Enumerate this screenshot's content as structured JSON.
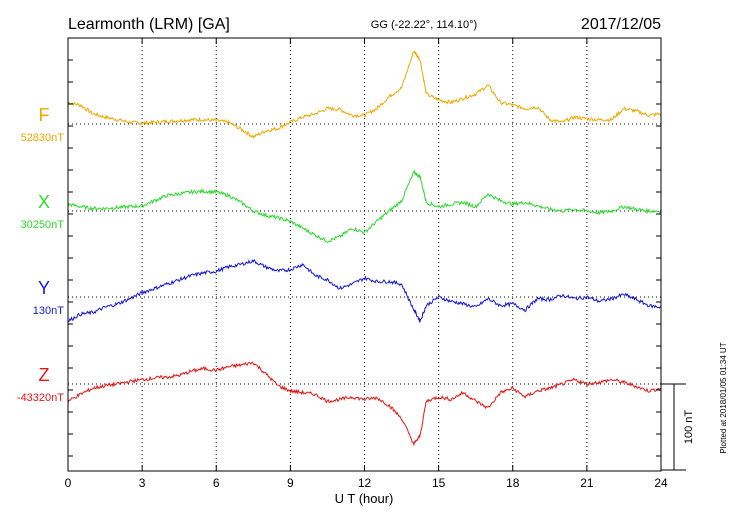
{
  "header": {
    "station": "Learmonth (LRM)  [GA]",
    "coords": "GG (-22.22°, 114.10°)",
    "date": "2017/12/05"
  },
  "side_note": "Plotted at 2018/01/05 01:34 UT",
  "scale_label": "100 nT",
  "chart_data": {
    "type": "line",
    "xlabel": "U T (hour)",
    "xlim": [
      0,
      24
    ],
    "x_ticks": [
      "0",
      "3",
      "6",
      "9",
      "12",
      "15",
      "18",
      "21",
      "24"
    ],
    "units_per_100nT": 100,
    "series": [
      {
        "name": "F",
        "baseline_label": "52830nT",
        "color": "#f0a800",
        "x": [
          0,
          0.5,
          1,
          1.5,
          2,
          2.5,
          3,
          3.5,
          4,
          4.5,
          5,
          5.5,
          6,
          6.5,
          7,
          7.5,
          8,
          8.5,
          9,
          9.5,
          10,
          10.5,
          11,
          11.5,
          12,
          12.5,
          13,
          13.5,
          14,
          14.25,
          14.5,
          15,
          15.5,
          16,
          16.5,
          17,
          17.5,
          18,
          18.5,
          19,
          19.5,
          20,
          20.5,
          21,
          21.5,
          22,
          22.5,
          23,
          23.5,
          24
        ],
        "y": [
          25,
          22,
          12,
          8,
          5,
          2,
          1,
          2,
          3,
          4,
          5,
          5,
          4,
          2,
          -6,
          -15,
          -8,
          -5,
          2,
          8,
          12,
          18,
          17,
          10,
          10,
          18,
          32,
          42,
          85,
          75,
          35,
          28,
          25,
          30,
          35,
          45,
          25,
          22,
          18,
          20,
          5,
          2,
          8,
          6,
          5,
          5,
          18,
          15,
          10,
          12
        ]
      },
      {
        "name": "X",
        "baseline_label": "30250nT",
        "color": "#2ed82e",
        "x": [
          0,
          0.5,
          1,
          1.5,
          2,
          2.5,
          3,
          3.5,
          4,
          4.5,
          5,
          5.5,
          6,
          6.5,
          7,
          7.5,
          8,
          8.5,
          9,
          9.5,
          10,
          10.5,
          11,
          11.5,
          12,
          12.5,
          13,
          13.5,
          14,
          14.25,
          14.5,
          15,
          15.5,
          16,
          16.5,
          17,
          17.5,
          18,
          18.5,
          19,
          19.5,
          20,
          20.5,
          21,
          21.5,
          22,
          22.5,
          23,
          23.5,
          24
        ],
        "y": [
          8,
          5,
          3,
          3,
          4,
          5,
          6,
          12,
          18,
          20,
          22,
          23,
          22,
          18,
          10,
          0,
          -5,
          -8,
          -12,
          -20,
          -28,
          -35,
          -30,
          -20,
          -25,
          -12,
          0,
          12,
          45,
          40,
          10,
          5,
          8,
          10,
          5,
          20,
          12,
          8,
          10,
          6,
          2,
          0,
          2,
          0,
          -2,
          0,
          5,
          2,
          0,
          0
        ]
      },
      {
        "name": "Y",
        "baseline_label": "130nT",
        "color": "#1818d0",
        "x": [
          0,
          0.5,
          1,
          1.5,
          2,
          2.5,
          3,
          3.5,
          4,
          4.5,
          5,
          5.5,
          6,
          6.5,
          7,
          7.5,
          8,
          8.5,
          9,
          9.5,
          10,
          10.5,
          11,
          11.5,
          12,
          12.5,
          13,
          13.5,
          14,
          14.25,
          14.5,
          15,
          15.5,
          16,
          16.5,
          17,
          17.5,
          18,
          18.5,
          19,
          19.5,
          20,
          20.5,
          21,
          21.5,
          22,
          22.5,
          23,
          23.5,
          24
        ],
        "y": [
          -28,
          -20,
          -18,
          -12,
          -8,
          -2,
          5,
          10,
          15,
          20,
          25,
          28,
          30,
          35,
          38,
          42,
          35,
          30,
          32,
          38,
          25,
          20,
          10,
          15,
          22,
          18,
          18,
          15,
          -15,
          -28,
          -10,
          0,
          -5,
          -8,
          -12,
          -2,
          -10,
          -8,
          -15,
          -2,
          -3,
          2,
          -2,
          0,
          -5,
          -2,
          3,
          -3,
          -10,
          -12
        ]
      },
      {
        "name": "Z",
        "baseline_label": "-43320nT",
        "color": "#e01818",
        "x": [
          0,
          0.5,
          1,
          1.5,
          2,
          2.5,
          3,
          3.5,
          4,
          4.5,
          5,
          5.5,
          6,
          6.5,
          7,
          7.5,
          8,
          8.5,
          9,
          9.5,
          10,
          10.5,
          11,
          11.5,
          12,
          12.5,
          13,
          13.5,
          14,
          14.25,
          14.5,
          15,
          15.5,
          16,
          16.5,
          17,
          17.5,
          18,
          18.5,
          19,
          19.5,
          20,
          20.5,
          21,
          21.5,
          22,
          22.5,
          23,
          23.5,
          24
        ],
        "y": [
          -20,
          -12,
          -5,
          -2,
          0,
          3,
          5,
          7,
          8,
          10,
          15,
          18,
          16,
          20,
          22,
          25,
          12,
          -2,
          -8,
          -10,
          -12,
          -20,
          -18,
          -15,
          -18,
          -16,
          -25,
          -40,
          -70,
          -60,
          -20,
          -15,
          -18,
          -10,
          -20,
          -28,
          -10,
          -5,
          -15,
          -8,
          -5,
          0,
          5,
          0,
          2,
          5,
          2,
          -3,
          -8,
          -5
        ]
      }
    ]
  }
}
